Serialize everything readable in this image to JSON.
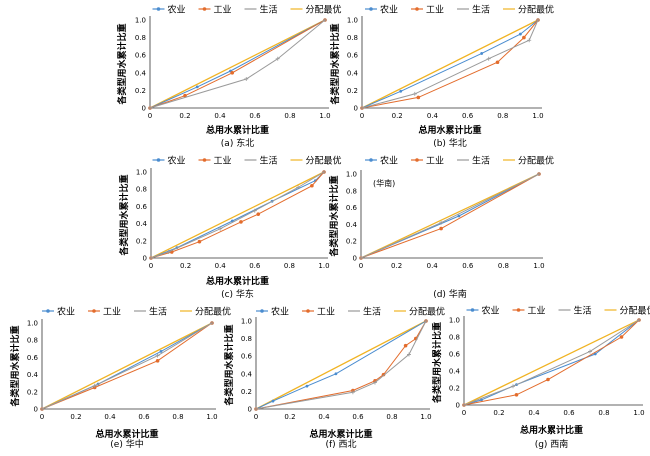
{
  "colors": {
    "agri": "#4a8ccf",
    "ind": "#e36c2c",
    "life": "#9a9a9a",
    "opt": "#f0b323"
  },
  "legend_labels": [
    "农业",
    "工业",
    "生活",
    "分配最优"
  ],
  "chart_data": [
    {
      "type": "line",
      "caption": "(a) 东北",
      "xlabel": "总用水累计比重",
      "ylabel": "各类型用水累计比重",
      "xlim": [
        0,
        1
      ],
      "ylim": [
        0,
        1
      ],
      "xticks": [
        "0",
        "0.2",
        "0.4",
        "0.6",
        "0.8",
        "1.0"
      ],
      "yticks": [
        "0",
        "0.2",
        "0.4",
        "0.6",
        "0.8",
        "1.0"
      ],
      "grid": false,
      "legend_position": "top",
      "annotation": "",
      "series": [
        {
          "name": "农业",
          "x": [
            0,
            0.27,
            0.46,
            1.0
          ],
          "y": [
            0,
            0.24,
            0.42,
            1.0
          ]
        },
        {
          "name": "工业",
          "x": [
            0,
            0.2,
            0.47,
            1.0
          ],
          "y": [
            0,
            0.14,
            0.4,
            1.0
          ]
        },
        {
          "name": "生活",
          "x": [
            0,
            0.55,
            0.73,
            1.0
          ],
          "y": [
            0,
            0.33,
            0.56,
            1.0
          ]
        },
        {
          "name": "分配最优",
          "x": [
            0,
            1.0
          ],
          "y": [
            0,
            1.0
          ]
        }
      ]
    },
    {
      "type": "line",
      "caption": "(b) 华北",
      "xlabel": "总用水累计比重",
      "ylabel": "各类型用水累计比重",
      "xlim": [
        0,
        1
      ],
      "ylim": [
        0,
        1
      ],
      "xticks": [
        "0",
        "0.2",
        "0.4",
        "0.6",
        "0.8",
        "1.0"
      ],
      "yticks": [
        "0",
        "0.2",
        "0.4",
        "0.6",
        "0.8",
        "1.0"
      ],
      "grid": false,
      "legend_position": "top",
      "annotation": "",
      "series": [
        {
          "name": "农业",
          "x": [
            0,
            0.22,
            0.68,
            0.9,
            1.0
          ],
          "y": [
            0,
            0.19,
            0.62,
            0.84,
            1.0
          ]
        },
        {
          "name": "工业",
          "x": [
            0,
            0.32,
            0.77,
            0.92,
            1.0
          ],
          "y": [
            0,
            0.12,
            0.52,
            0.8,
            1.0
          ]
        },
        {
          "name": "生活",
          "x": [
            0,
            0.3,
            0.72,
            0.95,
            1.0
          ],
          "y": [
            0,
            0.16,
            0.56,
            0.77,
            1.0
          ]
        },
        {
          "name": "分配最优",
          "x": [
            0,
            1.0
          ],
          "y": [
            0,
            1.0
          ]
        }
      ]
    },
    {
      "type": "line",
      "caption": "(c) 华东",
      "xlabel": "总用水累计比重",
      "ylabel": "各类型用水累计比重",
      "xlim": [
        0,
        1
      ],
      "ylim": [
        0,
        1
      ],
      "xticks": [
        "0",
        "0.2",
        "0.4",
        "0.6",
        "0.8",
        "1.0"
      ],
      "yticks": [
        "0",
        "0.2",
        "0.4",
        "0.6",
        "0.8",
        "1.0"
      ],
      "grid": false,
      "legend_position": "top",
      "annotation": "",
      "series": [
        {
          "name": "农业",
          "x": [
            0,
            0.15,
            0.47,
            0.7,
            0.95,
            1.0
          ],
          "y": [
            0,
            0.12,
            0.43,
            0.66,
            0.9,
            1.0
          ]
        },
        {
          "name": "工业",
          "x": [
            0,
            0.12,
            0.28,
            0.52,
            0.62,
            0.93,
            1.0
          ],
          "y": [
            0,
            0.07,
            0.19,
            0.42,
            0.51,
            0.84,
            1.0
          ]
        },
        {
          "name": "生活",
          "x": [
            0,
            0.1,
            0.4,
            0.6,
            0.85,
            1.0
          ],
          "y": [
            0,
            0.07,
            0.34,
            0.55,
            0.82,
            1.0
          ]
        },
        {
          "name": "分配最优",
          "x": [
            0,
            1.0
          ],
          "y": [
            0,
            1.0
          ]
        }
      ]
    },
    {
      "type": "line",
      "caption": "(d) 华南",
      "xlabel": "",
      "ylabel": "各类型用水累计比重",
      "xlim": [
        0,
        1
      ],
      "ylim": [
        0,
        1
      ],
      "xticks": [
        "0",
        "0.2",
        "0.4",
        "0.6",
        "0.8",
        "1.0"
      ],
      "yticks": [
        "0",
        "0.2",
        "0.4",
        "0.6",
        "0.8",
        "1.0"
      ],
      "grid": false,
      "legend_position": "top",
      "annotation": "(华南)",
      "series": [
        {
          "name": "农业",
          "x": [
            0,
            0.55,
            1.0
          ],
          "y": [
            0,
            0.5,
            1.0
          ]
        },
        {
          "name": "工业",
          "x": [
            0,
            0.45,
            1.0
          ],
          "y": [
            0,
            0.35,
            1.0
          ]
        },
        {
          "name": "生活",
          "x": [
            0,
            0.45,
            1.0
          ],
          "y": [
            0,
            0.42,
            1.0
          ]
        },
        {
          "name": "分配最优",
          "x": [
            0,
            1.0
          ],
          "y": [
            0,
            1.0
          ]
        }
      ]
    },
    {
      "type": "line",
      "caption": "(e) 华中",
      "xlabel": "总用水累计比重",
      "ylabel": "各类型用水累计比重",
      "xlim": [
        0,
        1
      ],
      "ylim": [
        0,
        1
      ],
      "xticks": [
        "0",
        "0.2",
        "0.4",
        "0.6",
        "0.8",
        "1.0"
      ],
      "yticks": [
        "0",
        "0.2",
        "0.4",
        "0.6",
        "0.8",
        "1.0"
      ],
      "grid": false,
      "legend_position": "top",
      "annotation": "",
      "series": [
        {
          "name": "农业",
          "x": [
            0,
            0.33,
            0.7,
            1.0
          ],
          "y": [
            0,
            0.29,
            0.67,
            1.0
          ]
        },
        {
          "name": "工业",
          "x": [
            0,
            0.31,
            0.68,
            1.0
          ],
          "y": [
            0,
            0.25,
            0.56,
            1.0
          ]
        },
        {
          "name": "生活",
          "x": [
            0,
            0.31,
            0.68,
            1.0
          ],
          "y": [
            0,
            0.27,
            0.62,
            1.0
          ]
        },
        {
          "name": "分配最优",
          "x": [
            0,
            1.0
          ],
          "y": [
            0,
            1.0
          ]
        }
      ]
    },
    {
      "type": "line",
      "caption": "(f) 西北",
      "xlabel": "总用水累计比重",
      "ylabel": "各类型用水累计比重",
      "xlim": [
        0,
        1
      ],
      "ylim": [
        0,
        1
      ],
      "xticks": [
        "0",
        "0.2",
        "0.4",
        "0.6",
        "0.8",
        "1.0"
      ],
      "yticks": [
        "0",
        "0.2",
        "0.4",
        "0.6",
        "0.8",
        "1.0"
      ],
      "grid": false,
      "legend_position": "top",
      "annotation": "",
      "series": [
        {
          "name": "农业",
          "x": [
            0,
            0.1,
            0.3,
            0.47,
            1.0
          ],
          "y": [
            0,
            0.09,
            0.26,
            0.4,
            1.0
          ]
        },
        {
          "name": "工业",
          "x": [
            0,
            0.57,
            0.7,
            0.75,
            0.88,
            0.94,
            1.0
          ],
          "y": [
            0,
            0.21,
            0.32,
            0.39,
            0.72,
            0.8,
            1.0
          ]
        },
        {
          "name": "生活",
          "x": [
            0,
            0.57,
            0.7,
            0.9,
            1.0
          ],
          "y": [
            0,
            0.19,
            0.3,
            0.62,
            1.0
          ]
        },
        {
          "name": "分配最优",
          "x": [
            0,
            1.0
          ],
          "y": [
            0,
            1.0
          ]
        }
      ]
    },
    {
      "type": "line",
      "caption": "(g) 西南",
      "xlabel": "总用水累计比重",
      "ylabel": "各类型用水累计比重",
      "xlim": [
        0,
        1
      ],
      "ylim": [
        0,
        1
      ],
      "xticks": [
        "0",
        "0.2",
        "0.4",
        "0.6",
        "0.8",
        "1.0"
      ],
      "yticks": [
        "0",
        "0.2",
        "0.4",
        "0.6",
        "0.8",
        "1.0"
      ],
      "grid": false,
      "legend_position": "top",
      "annotation": "",
      "series": [
        {
          "name": "农业",
          "x": [
            0,
            0.1,
            0.3,
            0.75,
            1.0
          ],
          "y": [
            0,
            0.06,
            0.24,
            0.6,
            1.0
          ]
        },
        {
          "name": "工业",
          "x": [
            0,
            0.3,
            0.48,
            0.9,
            1.0
          ],
          "y": [
            0,
            0.12,
            0.3,
            0.8,
            1.0
          ]
        },
        {
          "name": "生活",
          "x": [
            0,
            0.28,
            0.72,
            1.0
          ],
          "y": [
            0,
            0.22,
            0.63,
            1.0
          ]
        },
        {
          "name": "分配最优",
          "x": [
            0,
            1.0
          ],
          "y": [
            0,
            1.0
          ]
        }
      ]
    }
  ]
}
